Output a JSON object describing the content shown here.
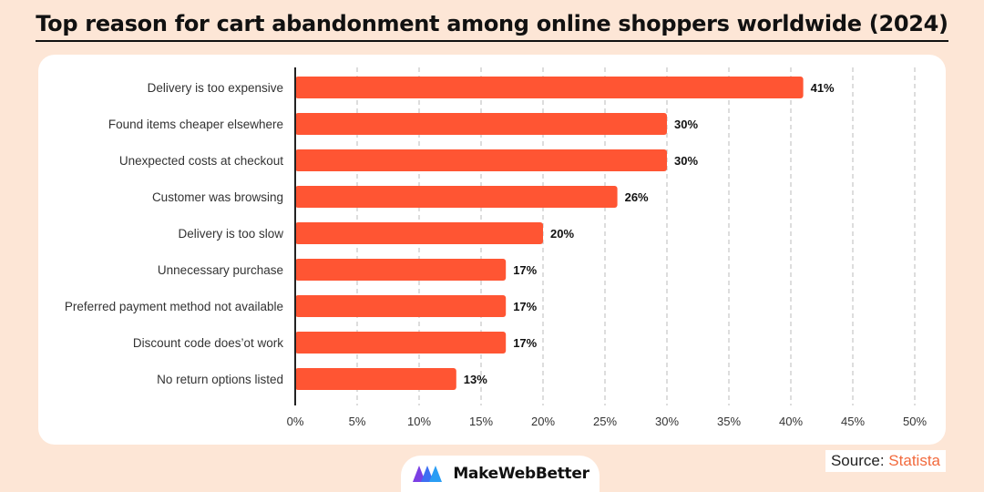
{
  "title": "Top reason for cart abandonment among online shoppers worldwide (2024)",
  "source": {
    "label": "Source:",
    "name": "Statista"
  },
  "brand": {
    "name": "MakeWebBetter"
  },
  "colors": {
    "bar": "#ff5533",
    "grid": "#bbbbbb",
    "axis": "#222222",
    "background": "#fde6d6"
  },
  "chart_data": {
    "type": "bar",
    "orientation": "horizontal",
    "categories": [
      "Delivery is too expensive",
      "Found items cheaper elsewhere",
      "Unexpected costs at checkout",
      "Customer was browsing",
      "Delivery is too slow",
      "Unnecessary purchase",
      "Preferred payment method not available",
      "Discount code does’ot work",
      "No return options listed"
    ],
    "values": [
      41,
      30,
      30,
      26,
      20,
      17,
      17,
      17,
      13
    ],
    "data_labels": [
      "41%",
      "30%",
      "30%",
      "26%",
      "20%",
      "17%",
      "17%",
      "17%",
      "13%"
    ],
    "x_ticks": [
      "0%",
      "5%",
      "10%",
      "15%",
      "20%",
      "25%",
      "30%",
      "35%",
      "40%",
      "45%",
      "50%"
    ],
    "xlim": [
      0,
      50
    ],
    "grid": "vertical dashed"
  }
}
